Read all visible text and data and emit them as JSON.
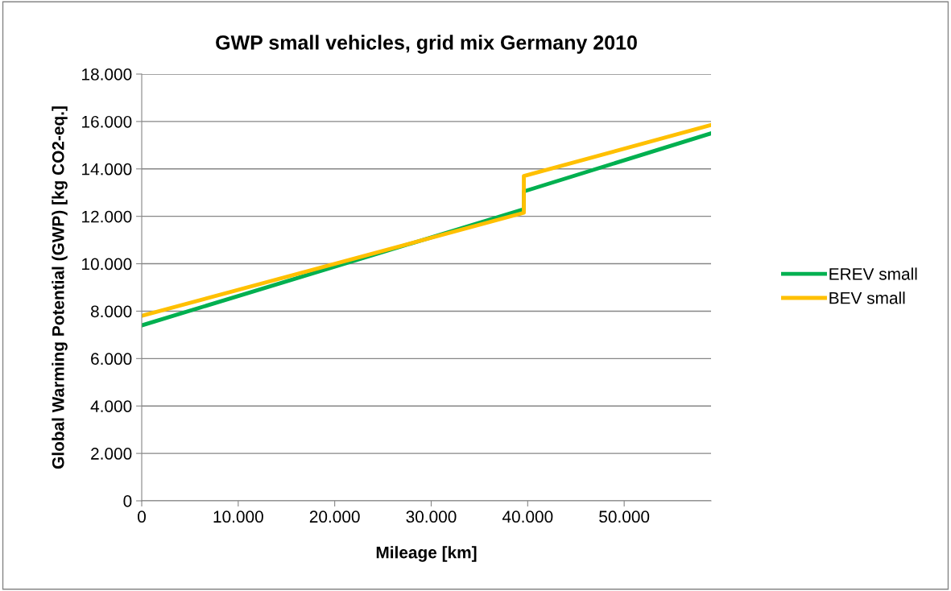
{
  "chart_data": {
    "type": "line",
    "title": "GWP small vehicles, grid mix Germany 2010",
    "xlabel": "Mileage [km]",
    "ylabel": "Global Warming Potential (GWP) [kg CO2-eq.]",
    "series": [
      {
        "name": "EREV small",
        "color": "#00b050",
        "x": [
          0,
          39600,
          39600,
          59000
        ],
        "values": [
          7400,
          12300,
          13050,
          15500
        ]
      },
      {
        "name": "BEV small",
        "color": "#ffc000",
        "x": [
          0,
          39600,
          39600,
          59000
        ],
        "values": [
          7800,
          12150,
          13700,
          15850
        ]
      }
    ],
    "xlim": [
      0,
      59000
    ],
    "xticks": [
      {
        "value": 0,
        "label": "0"
      },
      {
        "value": 10000,
        "label": "10.000"
      },
      {
        "value": 20000,
        "label": "20.000"
      },
      {
        "value": 30000,
        "label": "30.000"
      },
      {
        "value": 40000,
        "label": "40.000"
      },
      {
        "value": 50000,
        "label": "50.000"
      }
    ],
    "ylim": [
      0,
      18000
    ],
    "yticks": [
      {
        "value": 0,
        "label": "0"
      },
      {
        "value": 2000,
        "label": "2.000"
      },
      {
        "value": 4000,
        "label": "4.000"
      },
      {
        "value": 6000,
        "label": "6.000"
      },
      {
        "value": 8000,
        "label": "8.000"
      },
      {
        "value": 10000,
        "label": "10.000"
      },
      {
        "value": 12000,
        "label": "12.000"
      },
      {
        "value": 14000,
        "label": "14.000"
      },
      {
        "value": 16000,
        "label": "16.000"
      },
      {
        "value": 18000,
        "label": "18.000"
      }
    ],
    "grid": "y",
    "legend": "right",
    "marker": "none",
    "line_style": "solid"
  }
}
